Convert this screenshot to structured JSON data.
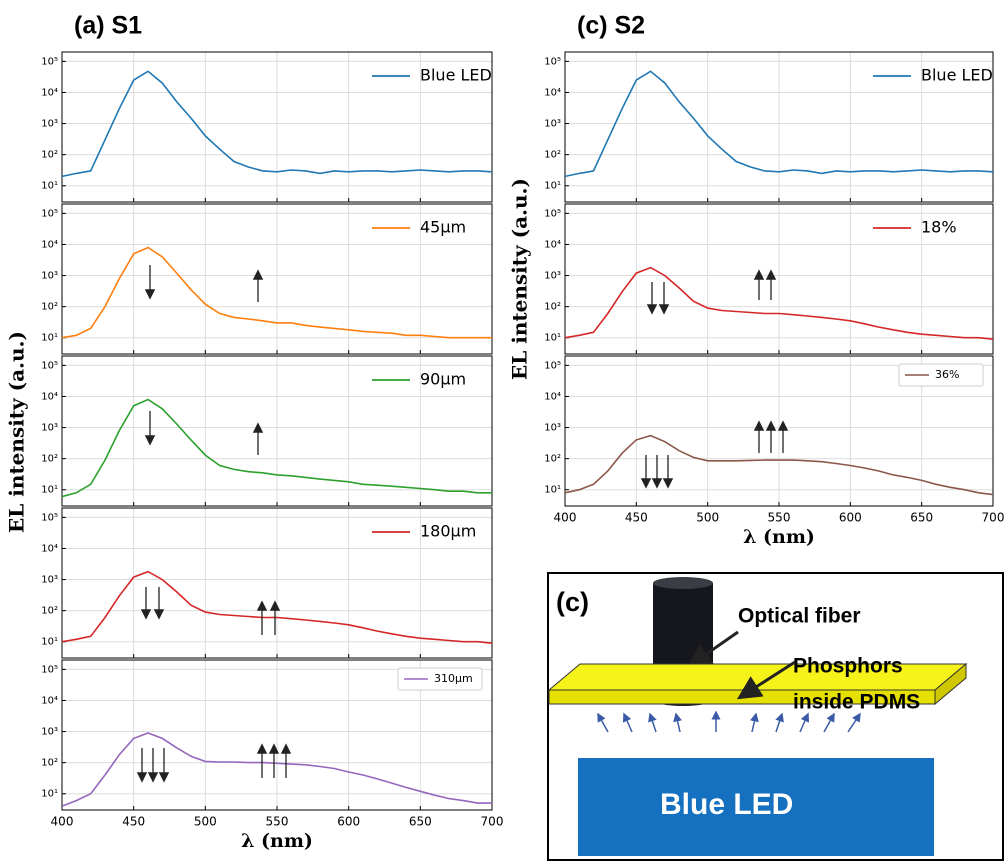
{
  "chart_data": [
    {
      "type": "line",
      "title": "(a)  S1",
      "ylabel": "EL intensity (a.u.)",
      "log_y": true,
      "grid": true,
      "legend": "upper right",
      "legend_frame": false,
      "x": [
        400,
        410,
        420,
        430,
        440,
        450,
        460,
        470,
        480,
        490,
        500,
        510,
        520,
        530,
        540,
        550,
        560,
        570,
        580,
        590,
        600,
        610,
        620,
        630,
        640,
        650,
        660,
        670,
        680,
        690,
        700
      ],
      "xlim": [
        400,
        700
      ],
      "xticks": [
        400,
        450,
        500,
        550,
        600,
        650,
        700
      ],
      "ylim": [
        3,
        200000
      ],
      "yticks": [
        {
          "value": 10,
          "label": "10¹"
        },
        {
          "value": 100,
          "label": "10²"
        },
        {
          "value": 1000,
          "label": "10³"
        },
        {
          "value": 10000,
          "label": "10⁴"
        },
        {
          "value": 100000,
          "label": "10⁵"
        }
      ],
      "series": [
        {
          "name": "Blue LED",
          "color": "#1f77b4",
          "values": [
            20,
            25,
            30,
            300,
            3000,
            25000,
            48000,
            20000,
            5000,
            1500,
            400,
            150,
            60,
            40,
            30,
            28,
            32,
            30,
            25,
            30,
            28,
            30,
            30,
            28,
            30,
            32,
            30,
            28,
            30,
            30,
            28
          ]
        }
      ]
    },
    {
      "type": "line",
      "log_y": true,
      "grid": true,
      "legend": "upper right",
      "legend_frame": false,
      "x": [
        400,
        410,
        420,
        430,
        440,
        450,
        460,
        470,
        480,
        490,
        500,
        510,
        520,
        530,
        540,
        550,
        560,
        570,
        580,
        590,
        600,
        610,
        620,
        630,
        640,
        650,
        660,
        670,
        680,
        690,
        700
      ],
      "xlim": [
        400,
        700
      ],
      "xticks": [
        400,
        450,
        500,
        550,
        600,
        650,
        700
      ],
      "ylim": [
        3,
        200000
      ],
      "yticks": [
        {
          "value": 10,
          "label": "10¹"
        },
        {
          "value": 100,
          "label": "10²"
        },
        {
          "value": 1000,
          "label": "10³"
        },
        {
          "value": 10000,
          "label": "10⁴"
        },
        {
          "value": 100000,
          "label": "10⁵"
        }
      ],
      "series": [
        {
          "name": "45μm",
          "color": "#ff7f0e",
          "values": [
            10,
            12,
            20,
            100,
            800,
            5000,
            8000,
            4000,
            1200,
            350,
            120,
            60,
            45,
            40,
            35,
            30,
            30,
            25,
            22,
            20,
            18,
            16,
            15,
            14,
            12,
            12,
            11,
            10,
            10,
            10,
            10
          ]
        }
      ]
    },
    {
      "type": "line",
      "log_y": true,
      "grid": true,
      "legend": "upper right",
      "legend_frame": false,
      "x": [
        400,
        410,
        420,
        430,
        440,
        450,
        460,
        470,
        480,
        490,
        500,
        510,
        520,
        530,
        540,
        550,
        560,
        570,
        580,
        590,
        600,
        610,
        620,
        630,
        640,
        650,
        660,
        670,
        680,
        690,
        700
      ],
      "xlim": [
        400,
        700
      ],
      "xticks": [
        400,
        450,
        500,
        550,
        600,
        650,
        700
      ],
      "ylim": [
        3,
        200000
      ],
      "yticks": [
        {
          "value": 10,
          "label": "10¹"
        },
        {
          "value": 100,
          "label": "10²"
        },
        {
          "value": 1000,
          "label": "10³"
        },
        {
          "value": 10000,
          "label": "10⁴"
        },
        {
          "value": 100000,
          "label": "10⁵"
        }
      ],
      "series": [
        {
          "name": "90μm",
          "color": "#2ca02c",
          "values": [
            6,
            8,
            15,
            90,
            800,
            5000,
            8000,
            4000,
            1300,
            400,
            130,
            60,
            45,
            38,
            35,
            30,
            28,
            25,
            22,
            20,
            18,
            15,
            14,
            13,
            12,
            11,
            10,
            9,
            9,
            8,
            8
          ]
        }
      ]
    },
    {
      "type": "line",
      "log_y": true,
      "grid": true,
      "legend": "upper right",
      "legend_frame": false,
      "x": [
        400,
        410,
        420,
        430,
        440,
        450,
        460,
        470,
        480,
        490,
        500,
        510,
        520,
        530,
        540,
        550,
        560,
        570,
        580,
        590,
        600,
        610,
        620,
        630,
        640,
        650,
        660,
        670,
        680,
        690,
        700
      ],
      "xlim": [
        400,
        700
      ],
      "xticks": [
        400,
        450,
        500,
        550,
        600,
        650,
        700
      ],
      "ylim": [
        3,
        200000
      ],
      "yticks": [
        {
          "value": 10,
          "label": "10¹"
        },
        {
          "value": 100,
          "label": "10²"
        },
        {
          "value": 1000,
          "label": "10³"
        },
        {
          "value": 10000,
          "label": "10⁴"
        },
        {
          "value": 100000,
          "label": "10⁵"
        }
      ],
      "series": [
        {
          "name": "180μm",
          "color": "#d62728",
          "values": [
            10,
            12,
            15,
            60,
            300,
            1200,
            1800,
            1000,
            400,
            150,
            90,
            75,
            70,
            65,
            60,
            60,
            55,
            50,
            45,
            40,
            35,
            28,
            22,
            18,
            15,
            13,
            12,
            11,
            10,
            10,
            9
          ]
        }
      ]
    },
    {
      "type": "line",
      "xlabel": "λ (nm)",
      "log_y": true,
      "grid": true,
      "legend": "upper right",
      "legend_frame": true,
      "x": [
        400,
        410,
        420,
        430,
        440,
        450,
        460,
        470,
        480,
        490,
        500,
        510,
        520,
        530,
        540,
        550,
        560,
        570,
        580,
        590,
        600,
        610,
        620,
        630,
        640,
        650,
        660,
        670,
        680,
        690,
        700
      ],
      "xlim": [
        400,
        700
      ],
      "xticks": [
        400,
        450,
        500,
        550,
        600,
        650,
        700
      ],
      "ylim": [
        3,
        200000
      ],
      "yticks": [
        {
          "value": 10,
          "label": "10¹"
        },
        {
          "value": 100,
          "label": "10²"
        },
        {
          "value": 1000,
          "label": "10³"
        },
        {
          "value": 10000,
          "label": "10⁴"
        },
        {
          "value": 100000,
          "label": "10⁵"
        }
      ],
      "series": [
        {
          "name": "310μm",
          "color": "#9467bd",
          "values": [
            4,
            6,
            10,
            40,
            180,
            600,
            900,
            600,
            300,
            160,
            110,
            105,
            105,
            100,
            100,
            95,
            90,
            85,
            75,
            65,
            50,
            40,
            30,
            22,
            16,
            12,
            9,
            7,
            6,
            5,
            5
          ]
        }
      ]
    },
    {
      "type": "line",
      "title": "(c)  S2",
      "ylabel": "EL intensity (a.u.)",
      "log_y": true,
      "grid": true,
      "legend": "upper right",
      "legend_frame": false,
      "x": [
        400,
        410,
        420,
        430,
        440,
        450,
        460,
        470,
        480,
        490,
        500,
        510,
        520,
        530,
        540,
        550,
        560,
        570,
        580,
        590,
        600,
        610,
        620,
        630,
        640,
        650,
        660,
        670,
        680,
        690,
        700
      ],
      "xlim": [
        400,
        700
      ],
      "xticks": [
        400,
        450,
        500,
        550,
        600,
        650,
        700
      ],
      "ylim": [
        3,
        200000
      ],
      "yticks": [
        {
          "value": 10,
          "label": "10¹"
        },
        {
          "value": 100,
          "label": "10²"
        },
        {
          "value": 1000,
          "label": "10³"
        },
        {
          "value": 10000,
          "label": "10⁴"
        },
        {
          "value": 100000,
          "label": "10⁵"
        }
      ],
      "series": [
        {
          "name": "Blue LED",
          "color": "#1f77b4",
          "values": [
            20,
            25,
            30,
            300,
            3000,
            25000,
            48000,
            20000,
            5000,
            1500,
            400,
            150,
            60,
            40,
            30,
            28,
            32,
            30,
            25,
            30,
            28,
            30,
            30,
            28,
            30,
            32,
            30,
            28,
            30,
            30,
            28
          ]
        }
      ]
    },
    {
      "type": "line",
      "log_y": true,
      "grid": true,
      "legend": "upper right",
      "legend_frame": false,
      "x": [
        400,
        410,
        420,
        430,
        440,
        450,
        460,
        470,
        480,
        490,
        500,
        510,
        520,
        530,
        540,
        550,
        560,
        570,
        580,
        590,
        600,
        610,
        620,
        630,
        640,
        650,
        660,
        670,
        680,
        690,
        700
      ],
      "xlim": [
        400,
        700
      ],
      "xticks": [
        400,
        450,
        500,
        550,
        600,
        650,
        700
      ],
      "ylim": [
        3,
        200000
      ],
      "yticks": [
        {
          "value": 10,
          "label": "10¹"
        },
        {
          "value": 100,
          "label": "10²"
        },
        {
          "value": 1000,
          "label": "10³"
        },
        {
          "value": 10000,
          "label": "10⁴"
        },
        {
          "value": 100000,
          "label": "10⁵"
        }
      ],
      "series": [
        {
          "name": "18%",
          "color": "#d62728",
          "values": [
            10,
            12,
            15,
            60,
            300,
            1200,
            1800,
            1000,
            400,
            150,
            90,
            75,
            70,
            65,
            60,
            60,
            55,
            50,
            45,
            40,
            35,
            28,
            22,
            18,
            15,
            13,
            12,
            11,
            10,
            10,
            9
          ]
        }
      ]
    },
    {
      "type": "line",
      "xlabel": "λ (nm)",
      "log_y": true,
      "grid": true,
      "legend": "upper right",
      "legend_frame": true,
      "x": [
        400,
        410,
        420,
        430,
        440,
        450,
        460,
        470,
        480,
        490,
        500,
        510,
        520,
        530,
        540,
        550,
        560,
        570,
        580,
        590,
        600,
        610,
        620,
        630,
        640,
        650,
        660,
        670,
        680,
        690,
        700
      ],
      "xlim": [
        400,
        700
      ],
      "xticks": [
        400,
        450,
        500,
        550,
        600,
        650,
        700
      ],
      "ylim": [
        3,
        200000
      ],
      "yticks": [
        {
          "value": 10,
          "label": "10¹"
        },
        {
          "value": 100,
          "label": "10²"
        },
        {
          "value": 1000,
          "label": "10³"
        },
        {
          "value": 10000,
          "label": "10⁴"
        },
        {
          "value": 100000,
          "label": "10⁵"
        }
      ],
      "series": [
        {
          "name": "36%",
          "color": "#8c564b",
          "values": [
            8,
            10,
            15,
            40,
            150,
            400,
            550,
            350,
            180,
            110,
            85,
            85,
            85,
            88,
            90,
            90,
            90,
            85,
            80,
            70,
            60,
            50,
            40,
            30,
            25,
            20,
            15,
            12,
            10,
            8,
            7
          ]
        }
      ]
    }
  ],
  "diagram": {
    "label": "(c)",
    "fiber": "Optical fiber",
    "phosphor_line1": "Phosphors",
    "phosphor_line2": "inside PDMS",
    "led": "Blue LED"
  }
}
